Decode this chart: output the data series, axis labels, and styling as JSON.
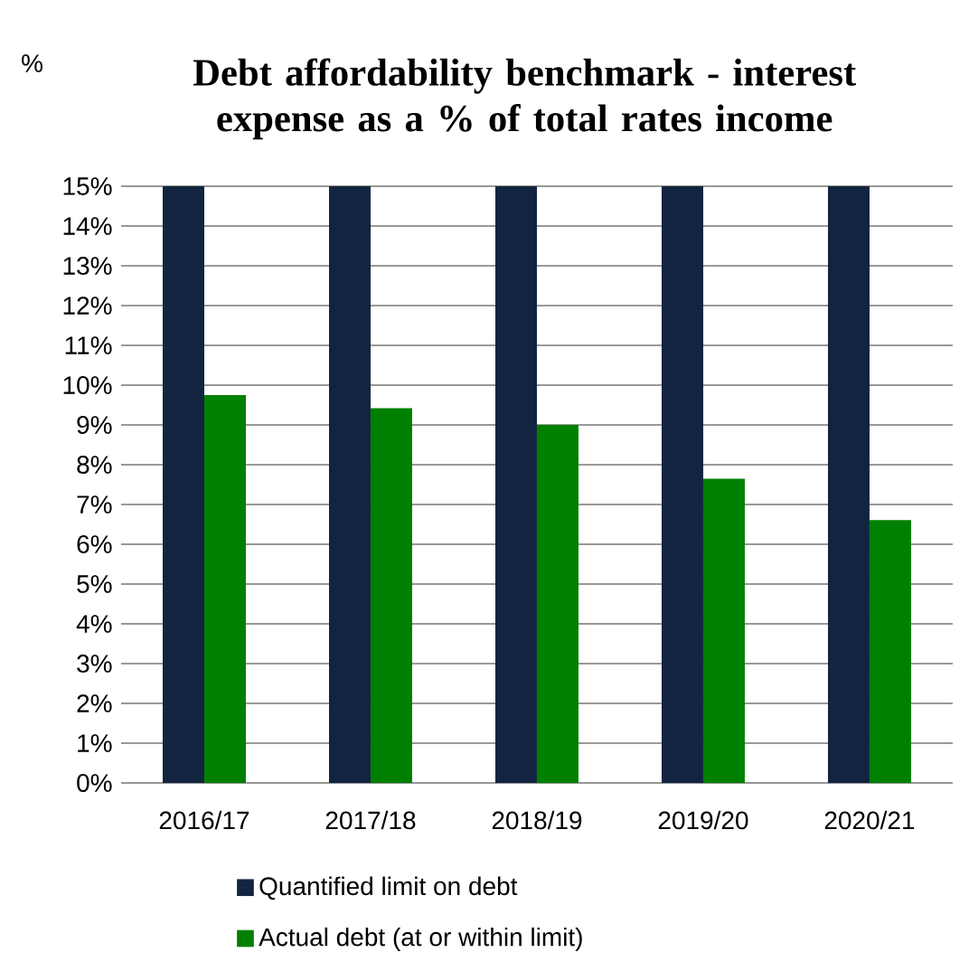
{
  "chart_data": {
    "type": "bar",
    "title": "Debt affordability benchmark - interest expense as a % of total rates income",
    "ylabel": "%",
    "categories": [
      "2016/17",
      "2017/18",
      "2018/19",
      "2019/20",
      "2020/21"
    ],
    "series": [
      {
        "name": "Quantified limit on debt",
        "color": "#12243f",
        "values": [
          15,
          15,
          15,
          15,
          15
        ]
      },
      {
        "name": "Actual debt (at or within limit)",
        "color": "#008000",
        "values": [
          9.75,
          9.42,
          9.0,
          7.65,
          6.61
        ]
      }
    ],
    "ylim": [
      0,
      15
    ],
    "yticks": [
      {
        "value": 0,
        "label": "0%"
      },
      {
        "value": 1,
        "label": "1%"
      },
      {
        "value": 2,
        "label": "2%"
      },
      {
        "value": 3,
        "label": "3%"
      },
      {
        "value": 4,
        "label": "4%"
      },
      {
        "value": 5,
        "label": "5%"
      },
      {
        "value": 6,
        "label": "6%"
      },
      {
        "value": 7,
        "label": "7%"
      },
      {
        "value": 8,
        "label": "8%"
      },
      {
        "value": 9,
        "label": "9%"
      },
      {
        "value": 10,
        "label": "10%"
      },
      {
        "value": 11,
        "label": "11%"
      },
      {
        "value": 12,
        "label": "12%"
      },
      {
        "value": 13,
        "label": "13%"
      },
      {
        "value": 14,
        "label": "14%"
      },
      {
        "value": 15,
        "label": "15%"
      }
    ],
    "grid": "y",
    "legend": "bottom"
  }
}
